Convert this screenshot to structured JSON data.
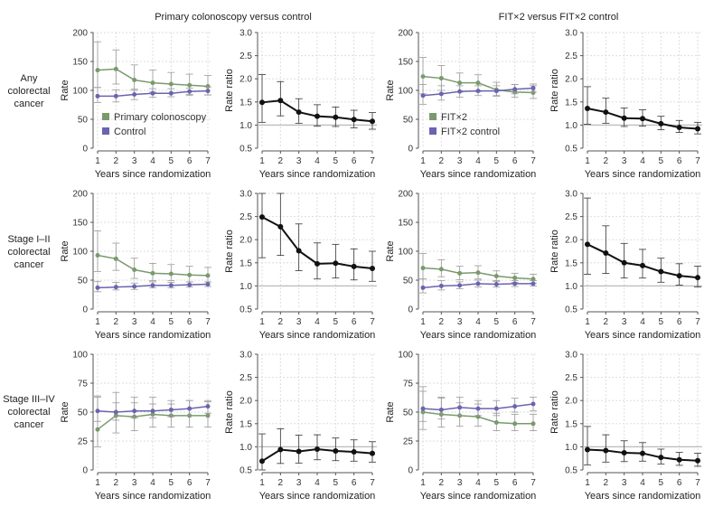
{
  "column_headers": [
    "Primary colonoscopy versus control",
    "FIT×2 versus FIT×2 control"
  ],
  "row_labels": [
    [
      "Any",
      "colorectal",
      "cancer"
    ],
    [
      "Stage I–II",
      "colorectal",
      "cancer"
    ],
    [
      "Stage III–IV",
      "colorectal",
      "cancer"
    ]
  ],
  "legends": [
    [
      {
        "name": "Primary colonoscopy",
        "color": "#7a9a6e"
      },
      {
        "name": "Control",
        "color": "#6b64b0"
      }
    ],
    [
      {
        "name": "FIT×2",
        "color": "#7a9a6e"
      },
      {
        "name": "FIT×2 control",
        "color": "#6b64b0"
      }
    ]
  ],
  "colors": {
    "treatment": "#7a9a6e",
    "control": "#6b64b0",
    "ratio": "#111111",
    "reference": "#bbbbbb"
  },
  "chart_data": [
    {
      "type": "line",
      "row": 0,
      "col": 0,
      "xlabel": "Years since randomization",
      "ylabel": "Rate",
      "x": [
        1,
        2,
        3,
        4,
        5,
        6,
        7
      ],
      "ylim": [
        0,
        200
      ],
      "yticks": [
        0,
        50,
        100,
        150,
        200
      ],
      "grid": true,
      "series": [
        {
          "name": "Primary colonoscopy",
          "values": [
            135,
            137,
            118,
            113,
            111,
            109,
            107
          ],
          "lo": [
            105,
            111,
            100,
            97,
            95,
            93,
            92
          ],
          "hi": [
            184,
            170,
            144,
            135,
            131,
            128,
            126
          ]
        },
        {
          "name": "Control",
          "values": [
            90,
            90,
            93,
            95,
            95,
            98,
            99
          ],
          "lo": [
            79,
            80,
            84,
            88,
            89,
            91,
            92
          ],
          "hi": [
            105,
            101,
            102,
            103,
            103,
            104,
            106
          ]
        }
      ]
    },
    {
      "type": "line",
      "row": 0,
      "col": 1,
      "xlabel": "Years since randomization",
      "ylabel": "Rate ratio",
      "x": [
        1,
        2,
        3,
        4,
        5,
        6,
        7
      ],
      "ylim": [
        0.5,
        3.0
      ],
      "yticks": [
        0.5,
        1.0,
        1.5,
        2.0,
        2.5,
        3.0
      ],
      "reference": 1.0,
      "grid": true,
      "series": [
        {
          "values": [
            1.49,
            1.53,
            1.28,
            1.19,
            1.17,
            1.12,
            1.08
          ],
          "lo": [
            1.06,
            1.2,
            1.04,
            0.98,
            0.97,
            0.94,
            0.91
          ],
          "hi": [
            2.09,
            1.94,
            1.57,
            1.44,
            1.39,
            1.32,
            1.27
          ]
        }
      ]
    },
    {
      "type": "line",
      "row": 0,
      "col": 2,
      "xlabel": "Years since randomization",
      "ylabel": "Rate",
      "x": [
        1,
        2,
        3,
        4,
        5,
        6,
        7
      ],
      "ylim": [
        0,
        200
      ],
      "yticks": [
        0,
        50,
        100,
        150,
        200
      ],
      "grid": true,
      "series": [
        {
          "name": "FIT×2",
          "values": [
            124,
            121,
            113,
            113,
            101,
            97,
            96
          ],
          "lo": [
            94,
            100,
            97,
            98,
            90,
            88,
            86
          ],
          "hi": [
            157,
            143,
            130,
            127,
            114,
            110,
            108
          ]
        },
        {
          "name": "FIT×2 control",
          "values": [
            91,
            94,
            98,
            99,
            99,
            102,
            104
          ],
          "lo": [
            76,
            83,
            88,
            91,
            91,
            94,
            97
          ],
          "hi": [
            110,
            108,
            108,
            108,
            108,
            110,
            111
          ]
        }
      ]
    },
    {
      "type": "line",
      "row": 0,
      "col": 3,
      "xlabel": "Years since randomization",
      "ylabel": "Rate ratio",
      "x": [
        1,
        2,
        3,
        4,
        5,
        6,
        7
      ],
      "ylim": [
        0.5,
        3.0
      ],
      "yticks": [
        0.5,
        1.0,
        1.5,
        2.0,
        2.5,
        3.0
      ],
      "reference": 1.0,
      "grid": true,
      "series": [
        {
          "values": [
            1.36,
            1.28,
            1.15,
            1.14,
            1.03,
            0.95,
            0.92
          ],
          "lo": [
            1.02,
            1.04,
            0.97,
            0.98,
            0.9,
            0.84,
            0.81
          ],
          "hi": [
            1.83,
            1.58,
            1.37,
            1.33,
            1.19,
            1.1,
            1.06
          ]
        }
      ]
    },
    {
      "type": "line",
      "row": 1,
      "col": 0,
      "xlabel": "Years since randomization",
      "ylabel": "Rate",
      "x": [
        1,
        2,
        3,
        4,
        5,
        6,
        7
      ],
      "ylim": [
        0,
        200
      ],
      "yticks": [
        0,
        50,
        100,
        150,
        200
      ],
      "grid": true,
      "series": [
        {
          "name": "Primary colonoscopy",
          "values": [
            93,
            87,
            68,
            62,
            61,
            59,
            58
          ],
          "lo": [
            65,
            67,
            53,
            49,
            49,
            47,
            47
          ],
          "hi": [
            135,
            114,
            88,
            79,
            77,
            74,
            72
          ]
        },
        {
          "name": "Control",
          "values": [
            37,
            38,
            39,
            41,
            41,
            42,
            43
          ],
          "lo": [
            30,
            33,
            34,
            37,
            37,
            38,
            39
          ],
          "hi": [
            48,
            46,
            45,
            47,
            46,
            47,
            47
          ]
        }
      ]
    },
    {
      "type": "line",
      "row": 1,
      "col": 1,
      "xlabel": "Years since randomization",
      "ylabel": "Rate ratio",
      "x": [
        1,
        2,
        3,
        4,
        5,
        6,
        7
      ],
      "ylim": [
        0.5,
        3.0
      ],
      "yticks": [
        0.5,
        1.0,
        1.5,
        2.0,
        2.5,
        3.0
      ],
      "reference": 1.0,
      "grid": true,
      "series": [
        {
          "values": [
            2.49,
            2.28,
            1.76,
            1.48,
            1.49,
            1.42,
            1.38
          ],
          "lo": [
            1.61,
            1.66,
            1.33,
            1.15,
            1.17,
            1.13,
            1.1
          ],
          "hi": [
            3.0,
            3.0,
            2.34,
            1.93,
            1.9,
            1.8,
            1.75
          ]
        }
      ]
    },
    {
      "type": "line",
      "row": 1,
      "col": 2,
      "xlabel": "Years since randomization",
      "ylabel": "Rate",
      "x": [
        1,
        2,
        3,
        4,
        5,
        6,
        7
      ],
      "ylim": [
        0,
        200
      ],
      "yticks": [
        0,
        50,
        100,
        150,
        200
      ],
      "grid": true,
      "series": [
        {
          "name": "FIT×2",
          "values": [
            71,
            69,
            62,
            63,
            57,
            54,
            52
          ],
          "lo": [
            52,
            56,
            51,
            52,
            48,
            46,
            45
          ],
          "hi": [
            96,
            85,
            74,
            75,
            66,
            62,
            60
          ]
        },
        {
          "name": "FIT×2 control",
          "values": [
            37,
            40,
            41,
            44,
            43,
            44,
            44
          ],
          "lo": [
            28,
            33,
            35,
            38,
            38,
            39,
            40
          ],
          "hi": [
            52,
            49,
            47,
            50,
            49,
            49,
            49
          ]
        }
      ]
    },
    {
      "type": "line",
      "row": 1,
      "col": 3,
      "xlabel": "Years since randomization",
      "ylabel": "Rate ratio",
      "x": [
        1,
        2,
        3,
        4,
        5,
        6,
        7
      ],
      "ylim": [
        0.5,
        3.0
      ],
      "yticks": [
        0.5,
        1.0,
        1.5,
        2.0,
        2.5,
        3.0
      ],
      "reference": 1.0,
      "grid": true,
      "series": [
        {
          "values": [
            1.9,
            1.71,
            1.5,
            1.44,
            1.31,
            1.22,
            1.18
          ],
          "lo": [
            1.25,
            1.27,
            1.17,
            1.17,
            1.08,
            1.02,
            0.98
          ],
          "hi": [
            2.9,
            2.3,
            1.92,
            1.79,
            1.6,
            1.48,
            1.43
          ]
        }
      ]
    },
    {
      "type": "line",
      "row": 2,
      "col": 0,
      "xlabel": "Years since randomization",
      "ylabel": "Rate",
      "x": [
        1,
        2,
        3,
        4,
        5,
        6,
        7
      ],
      "ylim": [
        0,
        100
      ],
      "yticks": [
        0,
        25,
        50,
        75,
        100
      ],
      "grid": true,
      "series": [
        {
          "name": "Primary colonoscopy",
          "values": [
            35,
            47,
            46,
            48,
            47,
            47,
            47
          ],
          "lo": [
            20,
            32,
            34,
            37,
            37,
            37,
            37
          ],
          "hi": [
            63,
            67,
            63,
            63,
            60,
            60,
            59
          ]
        },
        {
          "name": "Control",
          "values": [
            51,
            50,
            51,
            51,
            52,
            53,
            55
          ],
          "lo": [
            42,
            43,
            45,
            45,
            46,
            47,
            49
          ],
          "hi": [
            64,
            58,
            58,
            57,
            57,
            60,
            60
          ]
        }
      ]
    },
    {
      "type": "line",
      "row": 2,
      "col": 1,
      "xlabel": "Years since randomization",
      "ylabel": "Rate ratio",
      "x": [
        1,
        2,
        3,
        4,
        5,
        6,
        7
      ],
      "ylim": [
        0.5,
        3.0
      ],
      "yticks": [
        0.5,
        1.0,
        1.5,
        2.0,
        2.5,
        3.0
      ],
      "reference": 1.0,
      "grid": true,
      "series": [
        {
          "values": [
            0.69,
            0.94,
            0.9,
            0.95,
            0.91,
            0.89,
            0.86
          ],
          "lo": [
            0.5,
            0.64,
            0.65,
            0.72,
            0.7,
            0.69,
            0.67
          ],
          "hi": [
            1.28,
            1.39,
            1.25,
            1.26,
            1.19,
            1.15,
            1.11
          ]
        }
      ]
    },
    {
      "type": "line",
      "row": 2,
      "col": 2,
      "xlabel": "Years since randomization",
      "ylabel": "Rate",
      "x": [
        1,
        2,
        3,
        4,
        5,
        6,
        7
      ],
      "ylim": [
        0,
        100
      ],
      "yticks": [
        0,
        25,
        50,
        75,
        100
      ],
      "grid": true,
      "series": [
        {
          "name": "FIT×2",
          "values": [
            50,
            48,
            47,
            46,
            41,
            40,
            40
          ],
          "lo": [
            35,
            37,
            38,
            38,
            34,
            34,
            34
          ],
          "hi": [
            68,
            62,
            58,
            57,
            49,
            48,
            48
          ]
        },
        {
          "name": "FIT×2 control",
          "values": [
            53,
            52,
            54,
            53,
            53,
            55,
            57
          ],
          "lo": [
            42,
            44,
            47,
            47,
            47,
            50,
            51
          ],
          "hi": [
            72,
            63,
            63,
            60,
            60,
            62,
            63
          ]
        }
      ]
    },
    {
      "type": "line",
      "row": 2,
      "col": 3,
      "xlabel": "Years since randomization",
      "ylabel": "Rate ratio",
      "x": [
        1,
        2,
        3,
        4,
        5,
        6,
        7
      ],
      "ylim": [
        0.5,
        3.0
      ],
      "yticks": [
        0.5,
        1.0,
        1.5,
        2.0,
        2.5,
        3.0
      ],
      "reference": 1.0,
      "grid": true,
      "series": [
        {
          "values": [
            0.94,
            0.92,
            0.87,
            0.86,
            0.77,
            0.72,
            0.7
          ],
          "lo": [
            0.61,
            0.67,
            0.68,
            0.69,
            0.63,
            0.6,
            0.58
          ],
          "hi": [
            1.44,
            1.26,
            1.13,
            1.09,
            0.95,
            0.88,
            0.86
          ]
        }
      ]
    }
  ]
}
